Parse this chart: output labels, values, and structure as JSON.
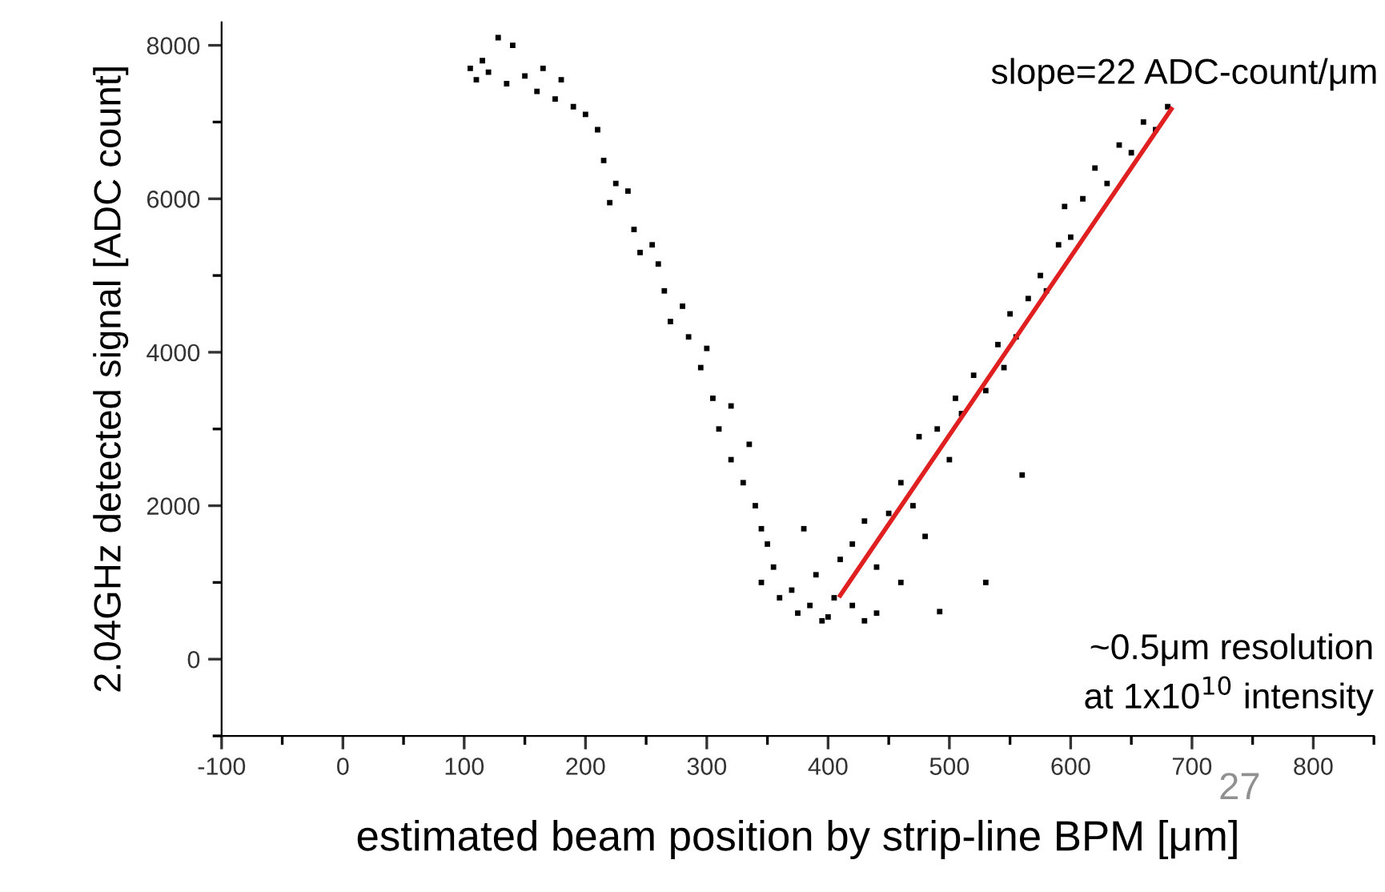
{
  "chart_data": {
    "type": "scatter",
    "xlabel": "estimated beam position by strip-line BPM [μm]",
    "ylabel": "2.04GHz detected signal [ADC count]",
    "xlim": [
      -100,
      850
    ],
    "ylim": [
      -1000,
      8300
    ],
    "xticks": [
      -100,
      0,
      100,
      200,
      300,
      400,
      500,
      600,
      700,
      800
    ],
    "yticks": [
      0,
      2000,
      4000,
      6000,
      8000
    ],
    "grid": false,
    "annotations": [
      "slope=22 ADC-count/μm",
      "~0.5μm resolution\nat 1x10$^{10}$ intensity",
      "27"
    ],
    "series": [
      {
        "marker": "square",
        "color": "#000000",
        "x": [
          105,
          110,
          115,
          120,
          128,
          140,
          135,
          150,
          160,
          165,
          175,
          180,
          190,
          200,
          210,
          215,
          225,
          220,
          235,
          240,
          245,
          255,
          260,
          265,
          270,
          280,
          285,
          295,
          300,
          305,
          310,
          320,
          320,
          330,
          335,
          340,
          345,
          350,
          355,
          345,
          360,
          370,
          375,
          385,
          380,
          390,
          395,
          400,
          405,
          410,
          420,
          430,
          440,
          460,
          420,
          430,
          440,
          450,
          460,
          470,
          475,
          480,
          490,
          500,
          505,
          510,
          520,
          530,
          540,
          545,
          550,
          555,
          560,
          565,
          575,
          580,
          590,
          595,
          600,
          610,
          620,
          630,
          640,
          650,
          660,
          670,
          680,
          492,
          530
        ],
        "values": [
          7700,
          7550,
          7800,
          7650,
          8100,
          8000,
          7500,
          7600,
          7400,
          7700,
          7300,
          7550,
          7200,
          7100,
          6900,
          6500,
          6200,
          5950,
          6100,
          5600,
          5300,
          5400,
          5150,
          4800,
          4400,
          4600,
          4200,
          3800,
          4050,
          3400,
          3000,
          3300,
          2600,
          2300,
          2800,
          2000,
          1700,
          1500,
          1200,
          1000,
          800,
          900,
          600,
          700,
          1700,
          1100,
          500,
          550,
          800,
          1300,
          700,
          500,
          600,
          1000,
          1500,
          1800,
          1200,
          1900,
          2300,
          2000,
          2900,
          1600,
          3000,
          2600,
          3400,
          3200,
          3700,
          3500,
          4100,
          3800,
          4500,
          4200,
          2400,
          4700,
          5000,
          4800,
          5400,
          5900,
          5500,
          6000,
          6400,
          6200,
          6700,
          6600,
          7000,
          6900,
          7200,
          620,
          1000
        ]
      },
      {
        "type": "line",
        "marker": "none",
        "color": "#e02020",
        "x": [
          410,
          683
        ],
        "values": [
          830,
          7170
        ]
      }
    ]
  }
}
